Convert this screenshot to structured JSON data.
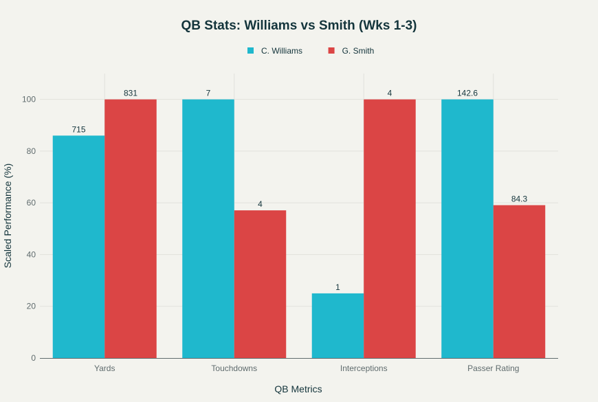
{
  "chart_data": {
    "type": "bar",
    "title": "QB Stats: Williams vs Smith (Wks 1-3)",
    "xlabel": "QB Metrics",
    "ylabel": "Scaled Performance (%)",
    "ylim": [
      0,
      110
    ],
    "yticks": [
      0,
      20,
      40,
      60,
      80,
      100
    ],
    "grid": true,
    "legend_placement": "top-center",
    "categories": [
      "Yards",
      "Touchdowns",
      "Interceptions",
      "Passer Rating"
    ],
    "series": [
      {
        "name": "C. Williams",
        "color": "#1fb8cd",
        "values": [
          86.0,
          100,
          25,
          100
        ],
        "labels": [
          "715",
          "7",
          "1",
          "142.6"
        ]
      },
      {
        "name": "G. Smith",
        "color": "#db4545",
        "values": [
          100,
          57.1,
          100,
          59.1
        ],
        "labels": [
          "831",
          "4",
          "4",
          "84.3"
        ]
      }
    ]
  }
}
